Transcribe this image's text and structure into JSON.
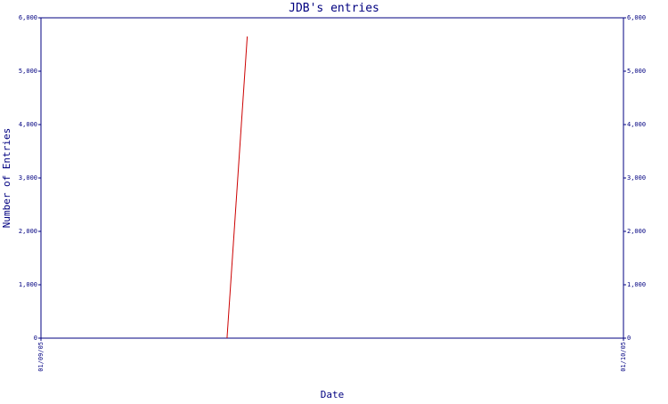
{
  "chart_data": {
    "type": "line",
    "title": "JDB's entries",
    "xlabel": "Date",
    "ylabel": "Number of Entries",
    "x_range": [
      "01/09/05",
      "01/10/05"
    ],
    "x_tick_labels": [
      "01/09/05",
      "01/10/05"
    ],
    "ylim": [
      0,
      6000
    ],
    "y_ticks": [
      0,
      1000,
      2000,
      3000,
      4000,
      5000,
      6000
    ],
    "y_tick_labels": [
      "0",
      "1,000",
      "2,000",
      "3,000",
      "4,000",
      "5,000",
      "6,000"
    ],
    "series": [
      {
        "x": [
          "01/09/05 07:40",
          "01/09/05 08:30"
        ],
        "values": [
          0,
          5650
        ]
      }
    ],
    "grid": false,
    "legend": "none",
    "colors": {
      "line": "#cc0000",
      "axes": "#000080"
    }
  }
}
